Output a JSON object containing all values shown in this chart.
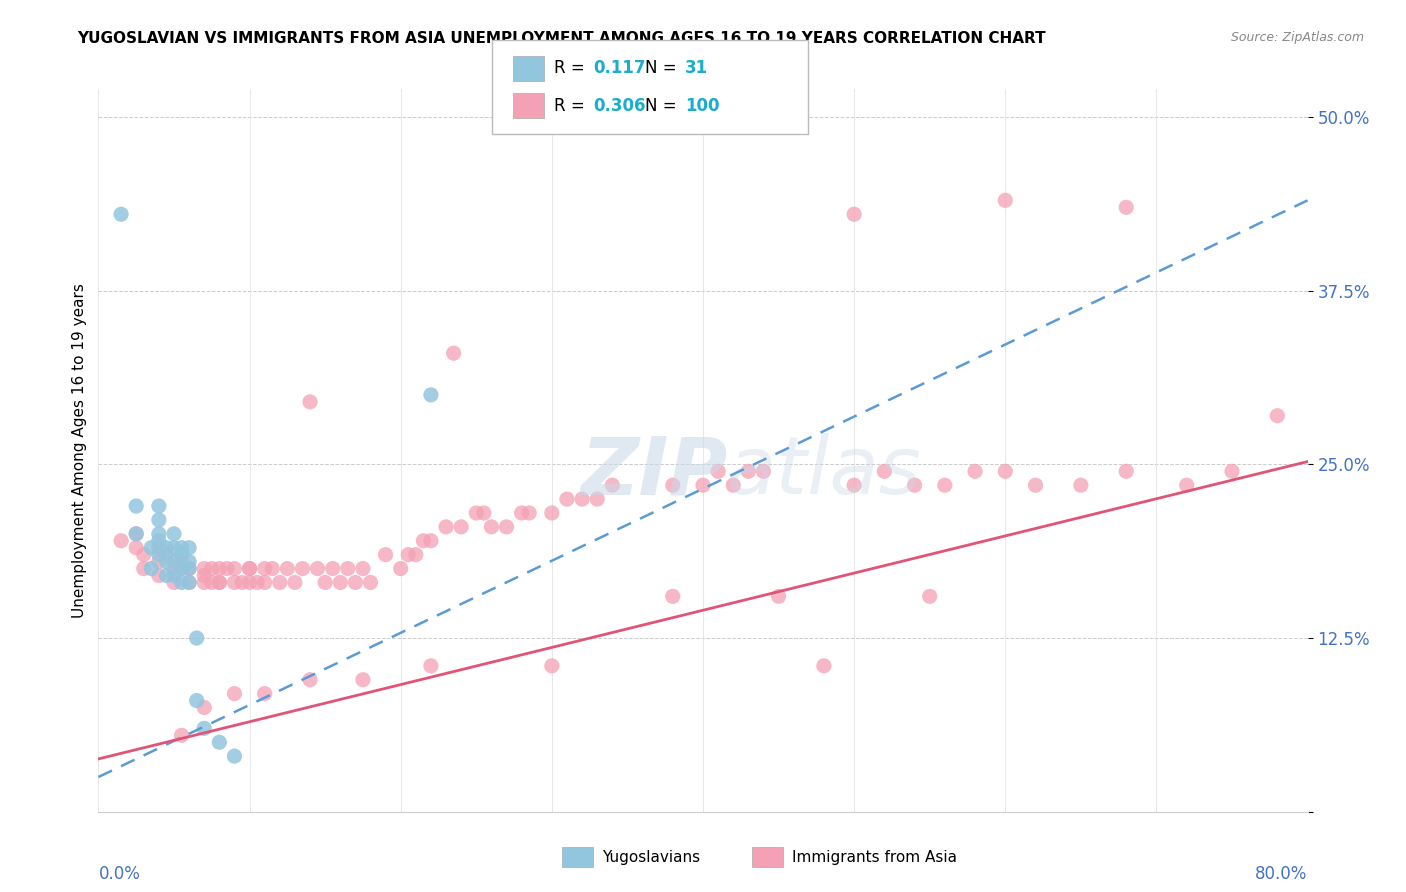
{
  "title": "YUGOSLAVIAN VS IMMIGRANTS FROM ASIA UNEMPLOYMENT AMONG AGES 16 TO 19 YEARS CORRELATION CHART",
  "source": "Source: ZipAtlas.com",
  "ylabel": "Unemployment Among Ages 16 to 19 years",
  "xmin": 0.0,
  "xmax": 0.8,
  "ymin": 0.0,
  "ymax": 0.52,
  "legend_r1": "0.117",
  "legend_n1": "31",
  "legend_r2": "0.306",
  "legend_n2": "100",
  "color_blue": "#92c5de",
  "color_pink": "#f4a0b5",
  "blue_trend_x": [
    0.0,
    0.8
  ],
  "blue_trend_y": [
    0.025,
    0.44
  ],
  "pink_trend_x": [
    0.0,
    0.8
  ],
  "pink_trend_y": [
    0.038,
    0.252
  ],
  "blue_scatter_x": [
    0.015,
    0.025,
    0.025,
    0.035,
    0.035,
    0.04,
    0.04,
    0.04,
    0.04,
    0.04,
    0.045,
    0.045,
    0.045,
    0.05,
    0.05,
    0.05,
    0.05,
    0.055,
    0.055,
    0.055,
    0.055,
    0.06,
    0.06,
    0.06,
    0.06,
    0.065,
    0.065,
    0.07,
    0.08,
    0.09,
    0.22
  ],
  "blue_scatter_y": [
    0.43,
    0.2,
    0.22,
    0.175,
    0.19,
    0.2,
    0.185,
    0.195,
    0.21,
    0.22,
    0.17,
    0.18,
    0.19,
    0.17,
    0.18,
    0.19,
    0.2,
    0.165,
    0.175,
    0.185,
    0.19,
    0.165,
    0.175,
    0.18,
    0.19,
    0.125,
    0.08,
    0.06,
    0.05,
    0.04,
    0.3
  ],
  "pink_scatter_x": [
    0.015,
    0.025,
    0.025,
    0.03,
    0.03,
    0.04,
    0.04,
    0.04,
    0.045,
    0.05,
    0.05,
    0.055,
    0.055,
    0.06,
    0.06,
    0.07,
    0.07,
    0.07,
    0.075,
    0.075,
    0.08,
    0.08,
    0.08,
    0.085,
    0.09,
    0.09,
    0.095,
    0.1,
    0.1,
    0.1,
    0.105,
    0.11,
    0.11,
    0.115,
    0.12,
    0.125,
    0.13,
    0.135,
    0.14,
    0.145,
    0.15,
    0.155,
    0.16,
    0.165,
    0.17,
    0.175,
    0.18,
    0.19,
    0.2,
    0.205,
    0.21,
    0.215,
    0.22,
    0.23,
    0.235,
    0.24,
    0.25,
    0.255,
    0.26,
    0.27,
    0.28,
    0.285,
    0.3,
    0.31,
    0.32,
    0.33,
    0.34,
    0.38,
    0.4,
    0.41,
    0.42,
    0.43,
    0.44,
    0.45,
    0.5,
    0.52,
    0.54,
    0.56,
    0.58,
    0.6,
    0.62,
    0.65,
    0.68,
    0.72,
    0.75,
    0.78,
    0.5,
    0.6,
    0.68,
    0.55,
    0.48,
    0.38,
    0.3,
    0.22,
    0.175,
    0.14,
    0.11,
    0.09,
    0.07,
    0.055
  ],
  "pink_scatter_y": [
    0.195,
    0.19,
    0.2,
    0.185,
    0.175,
    0.19,
    0.18,
    0.17,
    0.185,
    0.175,
    0.165,
    0.175,
    0.18,
    0.175,
    0.165,
    0.17,
    0.175,
    0.165,
    0.175,
    0.165,
    0.165,
    0.175,
    0.165,
    0.175,
    0.165,
    0.175,
    0.165,
    0.175,
    0.165,
    0.175,
    0.165,
    0.175,
    0.165,
    0.175,
    0.165,
    0.175,
    0.165,
    0.175,
    0.295,
    0.175,
    0.165,
    0.175,
    0.165,
    0.175,
    0.165,
    0.175,
    0.165,
    0.185,
    0.175,
    0.185,
    0.185,
    0.195,
    0.195,
    0.205,
    0.33,
    0.205,
    0.215,
    0.215,
    0.205,
    0.205,
    0.215,
    0.215,
    0.215,
    0.225,
    0.225,
    0.225,
    0.235,
    0.235,
    0.235,
    0.245,
    0.235,
    0.245,
    0.245,
    0.155,
    0.235,
    0.245,
    0.235,
    0.235,
    0.245,
    0.245,
    0.235,
    0.235,
    0.245,
    0.235,
    0.245,
    0.285,
    0.43,
    0.44,
    0.435,
    0.155,
    0.105,
    0.155,
    0.105,
    0.105,
    0.095,
    0.095,
    0.085,
    0.085,
    0.075,
    0.055
  ]
}
